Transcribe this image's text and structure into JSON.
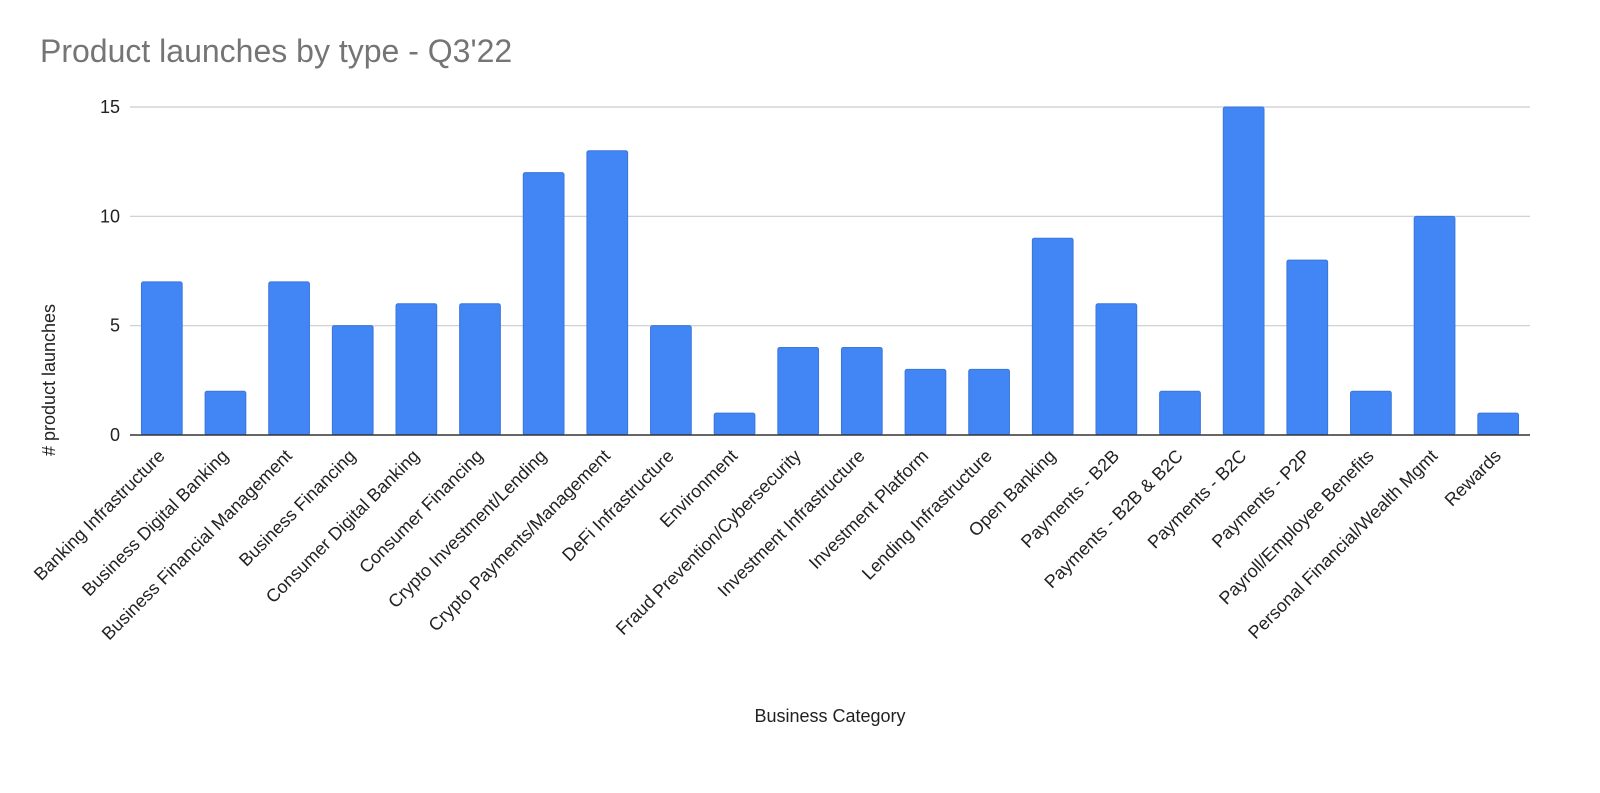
{
  "chart_data": {
    "type": "bar",
    "title": "Product launches by type - Q3'22",
    "xlabel": "Business Category",
    "ylabel": "# product launches",
    "categories": [
      "Banking Infrastructure",
      "Business Digital Banking",
      "Business Financial Management",
      "Business Financing",
      "Consumer Digital Banking",
      "Consumer Financing",
      "Crypto Investment/Lending",
      "Crypto Payments/Management",
      "DeFi Infrastructure",
      "Environment",
      "Fraud Prevention/Cybersecurity",
      "Investment Infrastructure",
      "Investment Platform",
      "Lending Infrastructure",
      "Open Banking",
      "Payments - B2B",
      "Payments - B2B & B2C",
      "Payments - B2C",
      "Payments - P2P",
      "Payroll/Employee Benefits",
      "Personal Financial/Wealth Mgmt",
      "Rewards"
    ],
    "values": [
      7,
      2,
      7,
      5,
      6,
      6,
      12,
      13,
      5,
      1,
      4,
      4,
      3,
      3,
      9,
      6,
      2,
      15,
      8,
      2,
      10,
      1
    ],
    "ylim": [
      0,
      15
    ],
    "yticks": [
      0,
      5,
      10,
      15
    ],
    "grid": true,
    "legend": "none",
    "colors": {
      "bar": "#4285f4",
      "bar_stroke": "#3a76db",
      "title": "#757575",
      "text": "#222222",
      "grid": "#cccccc",
      "axis": "#333333"
    }
  }
}
